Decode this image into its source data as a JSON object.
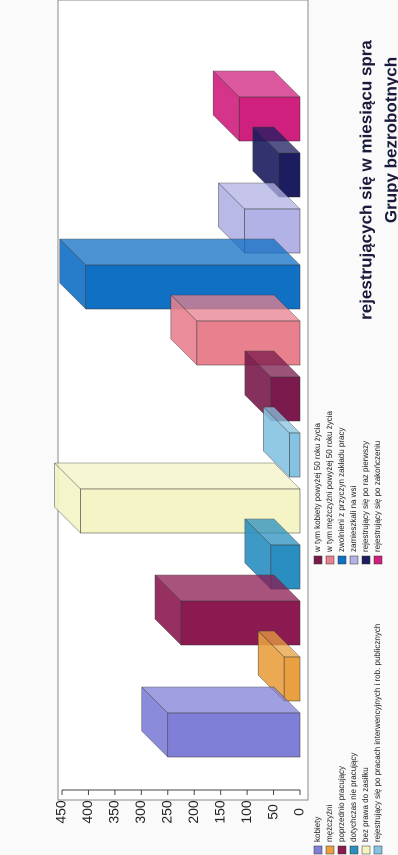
{
  "chart_data": {
    "type": "bar",
    "title": [
      "Grupy bezrobotnych",
      "rejestrujących się w miesiącu spra"
    ],
    "categories": [
      "kobiety",
      "mężczyźni",
      "poprzednio pracujący",
      "dotychczas nie pracujący",
      "bez prawa do zasiłku",
      "rejestrujący się po pracach interwencyjnych i rob. publicznych",
      "w tym kobiety powyżej 50 roku życia",
      "w tym mężczyźni powyżej 50 roku życia",
      "zwolnieni z przyczyn zakładu pracy",
      "zamieszkali na wsi",
      "rejestrujący się po raz pierwszy",
      "rejestrujący się po zakończeniu"
    ],
    "values": [
      250,
      30,
      225,
      55,
      415,
      20,
      55,
      195,
      405,
      105,
      40,
      115
    ],
    "colors": [
      "#7f7fd8",
      "#e8a040",
      "#8b1a50",
      "#2a8fc0",
      "#f4f4c6",
      "#86c3e0",
      "#7a1a4c",
      "#e8808e",
      "#1070c4",
      "#b2b2e6",
      "#1c1c60",
      "#d0207e"
    ],
    "ylim": [
      0,
      450
    ],
    "yticks": [
      0,
      50,
      100,
      150,
      200,
      250,
      300,
      350,
      400,
      450
    ]
  }
}
